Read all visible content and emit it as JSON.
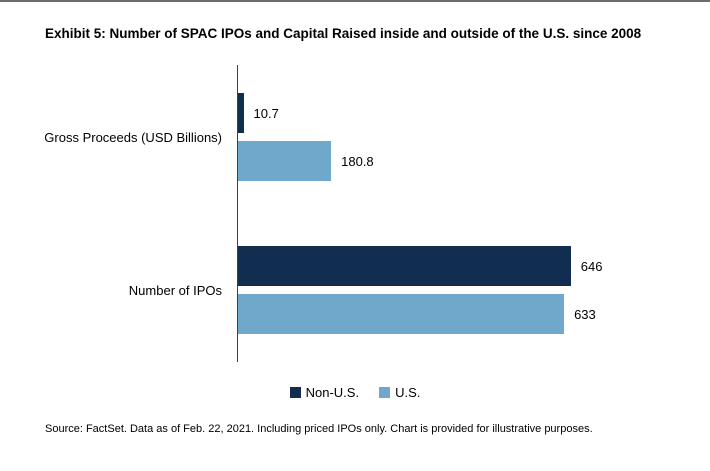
{
  "source": "Source: FactSet. Data as of Feb. 22, 2021. Including priced IPOs only. Chart is provided for illustrative purposes.",
  "chart_data": {
    "type": "bar",
    "orientation": "horizontal",
    "title": "Exhibit 5: Number of SPAC IPOs and Capital Raised inside and outside of the U.S. since 2008",
    "categories": [
      "Gross Proceeds (USD Billions)",
      "Number of IPOs"
    ],
    "series": [
      {
        "name": "Non-U.S.",
        "color": "#112e51",
        "values": [
          10.7,
          646
        ]
      },
      {
        "name": "U.S.",
        "color": "#6fa8cb",
        "values": [
          180.8,
          633
        ]
      }
    ],
    "xlim": [
      0,
      660
    ],
    "grid": false,
    "legend_position": "bottom",
    "axis_color": "#404040"
  }
}
